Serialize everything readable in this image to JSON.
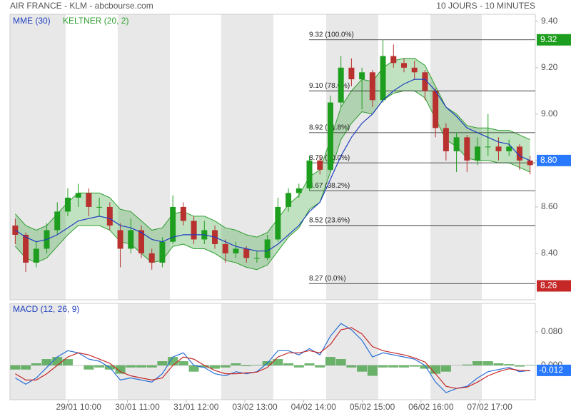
{
  "header": {
    "title": "AIR FRANCE - KLM - abcbourse.com",
    "period": "10 JOURS - 10 MINUTES"
  },
  "chart_data": [
    {
      "type": "candlestick",
      "up_color": "#1e9e1e",
      "down_color": "#b8312f",
      "x": [
        0.85,
        2.55,
        4.25,
        5.95,
        7.65,
        9.35,
        11.05,
        12.75,
        14.45,
        16.15,
        17.85,
        19.55,
        21.25,
        22.95,
        24.65,
        26.35,
        28.05,
        29.75,
        31.45,
        33.15,
        34.85,
        36.55,
        38.25,
        39.95,
        41.65,
        43.35,
        45.05,
        46.75,
        48.45,
        50.15,
        51.85,
        53.55,
        55.25,
        56.95,
        58.65,
        60.35,
        62.05,
        63.75,
        65.45,
        67.15,
        68.85,
        70.55,
        72.25,
        73.95,
        75.65,
        77.35,
        79.05,
        80.75,
        82.45,
        84.15
      ],
      "ohlc": [
        [
          8.52,
          8.55,
          8.44,
          8.48
        ],
        [
          8.48,
          8.49,
          8.32,
          8.36
        ],
        [
          8.36,
          8.45,
          8.34,
          8.42
        ],
        [
          8.42,
          8.53,
          8.4,
          8.5
        ],
        [
          8.5,
          8.62,
          8.48,
          8.58
        ],
        [
          8.58,
          8.68,
          8.56,
          8.64
        ],
        [
          8.64,
          8.7,
          8.6,
          8.66
        ],
        [
          8.66,
          8.68,
          8.56,
          8.6
        ],
        [
          8.6,
          8.64,
          8.56,
          8.6
        ],
        [
          8.6,
          8.62,
          8.5,
          8.52
        ],
        [
          8.5,
          8.53,
          8.34,
          8.42
        ],
        [
          8.42,
          8.55,
          8.4,
          8.5
        ],
        [
          8.5,
          8.52,
          8.38,
          8.4
        ],
        [
          8.4,
          8.42,
          8.33,
          8.36
        ],
        [
          8.36,
          8.47,
          8.34,
          8.45
        ],
        [
          8.45,
          8.65,
          8.44,
          8.6
        ],
        [
          8.6,
          8.62,
          8.52,
          8.54
        ],
        [
          8.54,
          8.56,
          8.44,
          8.46
        ],
        [
          8.46,
          8.54,
          8.44,
          8.5
        ],
        [
          8.5,
          8.52,
          8.42,
          8.44
        ],
        [
          8.44,
          8.46,
          8.36,
          8.4
        ],
        [
          8.4,
          8.45,
          8.38,
          8.42
        ],
        [
          8.42,
          8.43,
          8.36,
          8.38
        ],
        [
          8.38,
          8.41,
          8.36,
          8.38
        ],
        [
          8.38,
          8.48,
          8.37,
          8.46
        ],
        [
          8.46,
          8.64,
          8.45,
          8.6
        ],
        [
          8.6,
          8.68,
          8.58,
          8.66
        ],
        [
          8.66,
          8.7,
          8.64,
          8.68
        ],
        [
          8.68,
          8.82,
          8.67,
          8.8
        ],
        [
          8.8,
          8.82,
          8.74,
          8.76
        ],
        [
          8.76,
          9.08,
          8.75,
          9.05
        ],
        [
          9.05,
          9.25,
          9.03,
          9.2
        ],
        [
          9.2,
          9.24,
          9.12,
          9.15
        ],
        [
          9.15,
          9.2,
          9.02,
          9.18
        ],
        [
          9.18,
          9.19,
          9.03,
          9.06
        ],
        [
          9.06,
          9.32,
          9.05,
          9.25
        ],
        [
          9.25,
          9.3,
          9.2,
          9.22
        ],
        [
          9.22,
          9.24,
          9.18,
          9.2
        ],
        [
          9.2,
          9.23,
          9.15,
          9.18
        ],
        [
          9.18,
          9.19,
          9.06,
          9.1
        ],
        [
          9.1,
          9.11,
          8.9,
          8.94
        ],
        [
          8.94,
          8.96,
          8.8,
          8.84
        ],
        [
          8.84,
          8.92,
          8.75,
          8.9
        ],
        [
          8.9,
          8.91,
          8.75,
          8.8
        ],
        [
          8.8,
          8.9,
          8.78,
          8.86
        ],
        [
          8.86,
          9.0,
          8.82,
          8.86
        ],
        [
          8.86,
          8.9,
          8.8,
          8.84
        ],
        [
          8.84,
          8.89,
          8.82,
          8.86
        ],
        [
          8.86,
          8.87,
          8.76,
          8.8
        ],
        [
          8.8,
          8.82,
          8.74,
          8.78
        ]
      ],
      "series": [
        {
          "name": "MME (30)",
          "color": "#1f3fbf",
          "values": [
            8.5,
            8.47,
            8.45,
            8.46,
            8.48,
            8.51,
            8.54,
            8.55,
            8.56,
            8.55,
            8.52,
            8.51,
            8.49,
            8.46,
            8.45,
            8.47,
            8.48,
            8.48,
            8.48,
            8.47,
            8.45,
            8.43,
            8.42,
            8.41,
            8.41,
            8.44,
            8.48,
            8.52,
            8.58,
            8.62,
            8.72,
            8.82,
            8.9,
            8.96,
            9.0,
            9.06,
            9.1,
            9.13,
            9.15,
            9.15,
            9.1,
            9.03,
            8.99,
            8.94,
            8.92,
            8.9,
            8.88,
            8.87,
            8.82,
            8.8
          ]
        }
      ],
      "band": {
        "name": "KELTNER (20, 2)",
        "color": "#2e9e2e",
        "upper": [
          8.57,
          8.52,
          8.5,
          8.52,
          8.57,
          8.62,
          8.66,
          8.66,
          8.66,
          8.64,
          8.59,
          8.58,
          8.54,
          8.5,
          8.51,
          8.57,
          8.58,
          8.56,
          8.56,
          8.54,
          8.51,
          8.5,
          8.48,
          8.47,
          8.49,
          8.55,
          8.61,
          8.65,
          8.73,
          8.76,
          8.89,
          9.03,
          9.1,
          9.15,
          9.14,
          9.2,
          9.23,
          9.24,
          9.24,
          9.21,
          9.12,
          9.03,
          9.0,
          8.95,
          8.94,
          8.94,
          8.93,
          8.93,
          8.91,
          8.89
        ],
        "lower": [
          8.43,
          8.38,
          8.36,
          8.38,
          8.43,
          8.48,
          8.52,
          8.52,
          8.52,
          8.5,
          8.45,
          8.44,
          8.4,
          8.36,
          8.37,
          8.43,
          8.44,
          8.42,
          8.42,
          8.4,
          8.37,
          8.36,
          8.34,
          8.33,
          8.35,
          8.41,
          8.47,
          8.51,
          8.59,
          8.62,
          8.75,
          8.89,
          8.96,
          9.01,
          9.0,
          9.06,
          9.09,
          9.1,
          9.1,
          9.07,
          8.98,
          8.89,
          8.86,
          8.81,
          8.8,
          8.8,
          8.79,
          8.79,
          8.77,
          8.75
        ]
      },
      "fib_levels": [
        {
          "value": 9.32,
          "label": "9.32  (100.0%)"
        },
        {
          "value": 9.1,
          "label": "9.10  (78.6%)"
        },
        {
          "value": 8.92,
          "label": "8.92  (61.8%)"
        },
        {
          "value": 8.79,
          "label": "8.79  (50.0%)"
        },
        {
          "value": 8.67,
          "label": "8.67  (38.2%)"
        },
        {
          "value": 8.52,
          "label": "8.52  (23.6%)"
        },
        {
          "value": 8.27,
          "label": "8.27  (0.0%)"
        }
      ],
      "markers": [
        {
          "value": 9.32,
          "label": "9.32",
          "color": "#1e9e1e"
        },
        {
          "value": 8.8,
          "label": "8.80",
          "color": "#2979ff"
        },
        {
          "value": 8.26,
          "label": "8.26",
          "color": "#c62828"
        }
      ],
      "xlim": [
        0,
        85
      ],
      "ylim": [
        8.2,
        9.43
      ],
      "yticks": [
        {
          "value": 8.4,
          "label": "8.40"
        },
        {
          "value": 8.6,
          "label": "8.60"
        },
        {
          "value": 8.8,
          "label": "8.80"
        },
        {
          "value": 9.0,
          "label": "9.00"
        },
        {
          "value": 9.2,
          "label": "9.20"
        },
        {
          "value": 9.4,
          "label": "9.40"
        }
      ]
    },
    {
      "type": "macd",
      "title": "MACD (12, 26, 9)",
      "x": [
        0.85,
        2.55,
        4.25,
        5.95,
        7.65,
        9.35,
        11.05,
        12.75,
        14.45,
        16.15,
        17.85,
        19.55,
        21.25,
        22.95,
        24.65,
        26.35,
        28.05,
        29.75,
        31.45,
        33.15,
        34.85,
        36.55,
        38.25,
        39.95,
        41.65,
        43.35,
        45.05,
        46.75,
        48.45,
        50.15,
        51.85,
        53.55,
        55.25,
        56.95,
        58.65,
        60.35,
        62.05,
        63.75,
        65.45,
        67.15,
        68.85,
        70.55,
        72.25,
        73.95,
        75.65,
        77.35,
        79.05,
        80.75,
        82.45,
        84.15
      ],
      "series": [
        {
          "name": "MACD",
          "color": "#2a6fd6",
          "values": [
            -0.03,
            -0.045,
            -0.03,
            -0.005,
            0.02,
            0.035,
            0.03,
            0.015,
            0.01,
            -0.005,
            -0.035,
            -0.03,
            -0.035,
            -0.04,
            -0.02,
            0.02,
            0.03,
            0.0,
            -0.005,
            -0.02,
            -0.025,
            -0.015,
            -0.02,
            -0.015,
            0.005,
            0.035,
            0.035,
            0.025,
            0.04,
            0.025,
            0.07,
            0.1,
            0.085,
            0.06,
            0.02,
            0.03,
            0.025,
            0.02,
            0.015,
            0.0,
            -0.04,
            -0.065,
            -0.055,
            -0.05,
            -0.03,
            -0.015,
            -0.01,
            -0.005,
            -0.015,
            -0.012
          ]
        },
        {
          "name": "Signal",
          "color": "#c62828",
          "values": [
            -0.02,
            -0.035,
            -0.035,
            -0.02,
            0.0,
            0.02,
            0.03,
            0.025,
            0.015,
            0.005,
            -0.015,
            -0.025,
            -0.03,
            -0.035,
            -0.03,
            0.0,
            0.02,
            0.015,
            0.0,
            -0.012,
            -0.02,
            -0.02,
            -0.018,
            -0.016,
            -0.005,
            0.02,
            0.03,
            0.03,
            0.035,
            0.03,
            0.05,
            0.085,
            0.09,
            0.075,
            0.045,
            0.035,
            0.03,
            0.025,
            0.018,
            0.008,
            -0.02,
            -0.05,
            -0.055,
            -0.052,
            -0.04,
            -0.025,
            -0.015,
            -0.008,
            -0.012,
            -0.013
          ]
        }
      ],
      "histogram": {
        "color": "#3f9e3f",
        "values": [
          -0.01,
          -0.01,
          0.005,
          0.015,
          0.02,
          0.015,
          0.0,
          -0.01,
          -0.005,
          -0.01,
          -0.02,
          -0.005,
          -0.005,
          -0.005,
          0.01,
          0.02,
          0.01,
          -0.015,
          -0.005,
          -0.008,
          -0.005,
          0.005,
          -0.002,
          0.001,
          0.01,
          0.015,
          0.005,
          -0.005,
          0.005,
          -0.005,
          0.02,
          0.015,
          -0.005,
          -0.015,
          -0.025,
          -0.005,
          -0.005,
          -0.005,
          -0.003,
          -0.008,
          -0.02,
          -0.015,
          0.0,
          0.002,
          0.01,
          0.01,
          0.005,
          0.003,
          -0.003,
          0.001
        ]
      },
      "markers": [
        {
          "value": -0.012,
          "color": "#2979ff"
        }
      ],
      "xlim": [
        0,
        85
      ],
      "ylim": [
        -0.082,
        0.148
      ],
      "yticks": [
        {
          "value": 0.0,
          "label": "0.000"
        },
        {
          "value": 0.08,
          "label": "0.080"
        }
      ],
      "xticks": [
        {
          "value": 9.5,
          "label": "29/01 10:00"
        },
        {
          "value": 19,
          "label": "30/01 11:00"
        },
        {
          "value": 28.5,
          "label": "31/01 12:00"
        },
        {
          "value": 38,
          "label": "03/02 13:00"
        },
        {
          "value": 47.5,
          "label": "04/02 14:00"
        },
        {
          "value": 57,
          "label": "05/02 15:00"
        },
        {
          "value": 66.5,
          "label": "06/02 16:00"
        },
        {
          "value": 76,
          "label": "07/02 17:00"
        }
      ]
    }
  ]
}
